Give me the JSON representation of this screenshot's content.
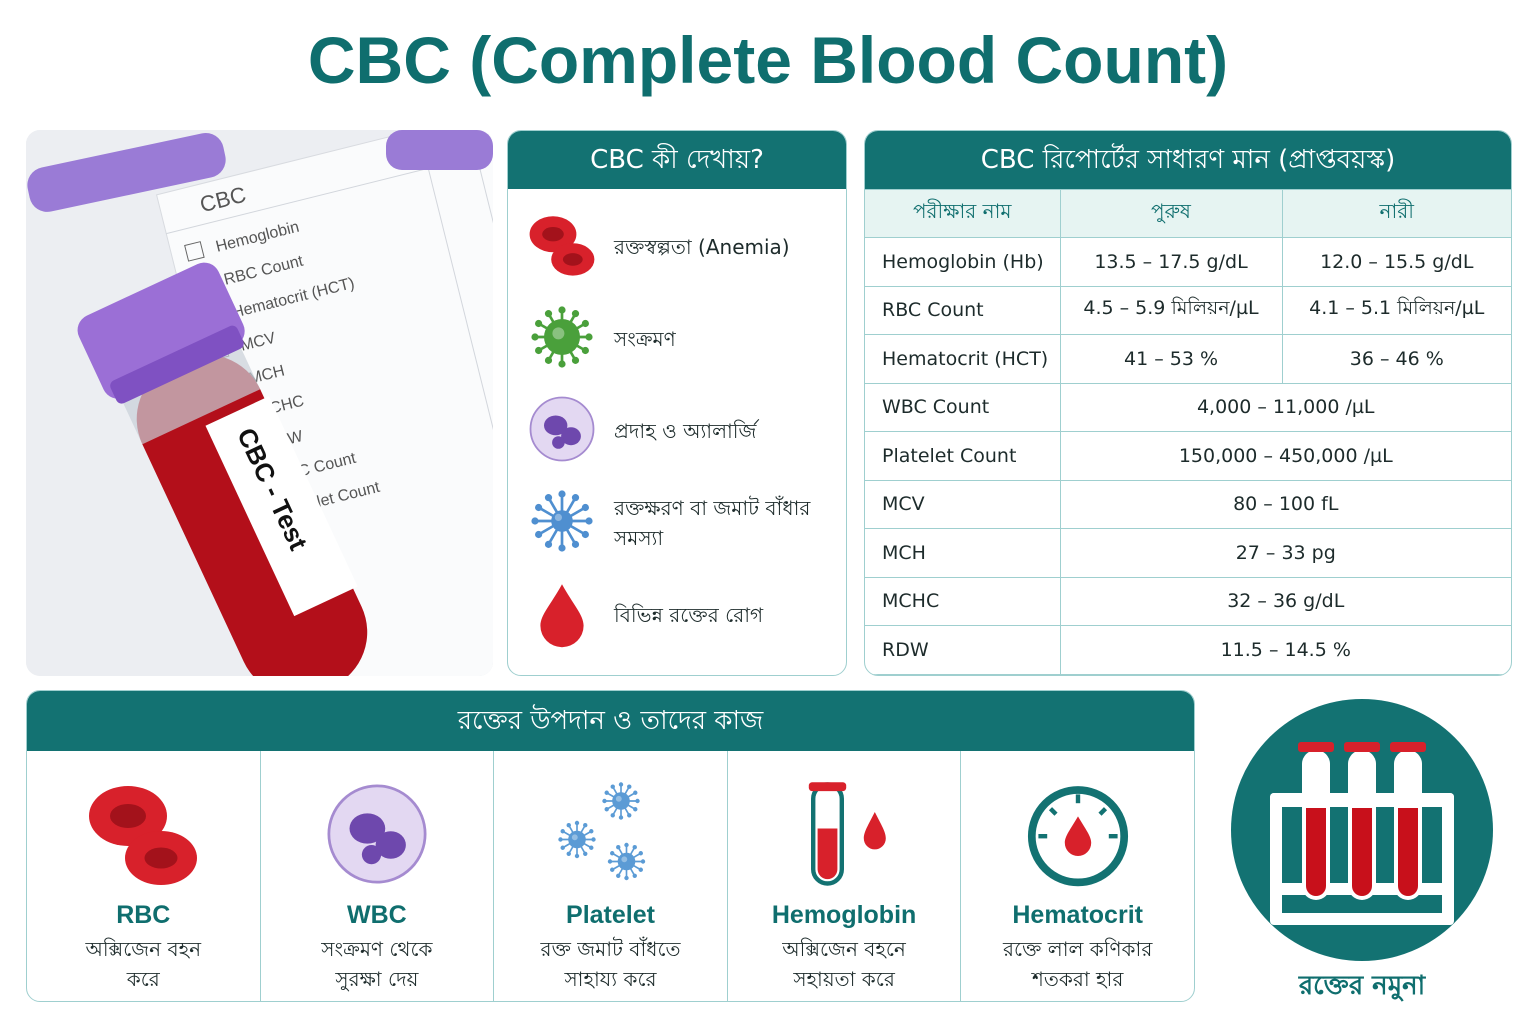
{
  "title": "CBC (Complete Blood Count)",
  "photo": {
    "checklist_title": "CBC",
    "items": [
      "Hemoglobin",
      "RBC Count",
      "Hematocrit (HCT)",
      "MCV",
      "MCH",
      "MCHC",
      "RDW",
      "WBC Count",
      "Platelet Count"
    ],
    "tube_label": "CBC - Test"
  },
  "what_it_shows": {
    "heading": "CBC কী দেখায়?",
    "items": [
      "রক্তস্বল্পতা (Anemia)",
      "সংক্রমণ",
      "প্রদাহ ও অ্যালার্জি",
      "রক্তক্ষরণ বা জমাট বাঁধার সমস্যা",
      "বিভিন্ন রক্তের রোগ"
    ]
  },
  "table": {
    "heading": "CBC রিপোর্টের সাধারণ মান (প্রাপ্তবয়স্ক)",
    "columns": [
      "পরীক্ষার নাম",
      "পুরুষ",
      "নারী"
    ],
    "rows": [
      [
        "Hemoglobin (Hb)",
        "13.5 – 17.5 g/dL",
        "12.0 – 15.5 g/dL"
      ],
      [
        "RBC Count",
        "4.5 – 5.9 মিলিয়ন/µL",
        "4.1 – 5.1 মিলিয়ন/µL"
      ],
      [
        "Hematocrit (HCT)",
        "41 – 53 %",
        "36 – 46 %"
      ],
      [
        "WBC Count",
        "4,000 – 11,000 /µL"
      ],
      [
        "Platelet Count",
        "150,000 – 450,000 /µL"
      ],
      [
        "MCV",
        "80 – 100 fL"
      ],
      [
        "MCH",
        "27 – 33 pg"
      ],
      [
        "MCHC",
        "32 – 36 g/dL"
      ],
      [
        "RDW",
        "11.5 – 14.5 %"
      ]
    ]
  },
  "components": {
    "heading": "রক্তের উপদান ও তাদের কাজ",
    "items": [
      {
        "name": "RBC",
        "description": "অক্সিজেন বহন করে"
      },
      {
        "name": "WBC",
        "description": "সংক্রমণ থেকে সুরক্ষা দেয়"
      },
      {
        "name": "Platelet",
        "description": "রক্ত জমাট বাঁধতে সাহায্য করে"
      },
      {
        "name": "Hemoglobin",
        "description": "অক্সিজেন বহনে সহায়তা করে"
      },
      {
        "name": "Hematocrit",
        "description": "রক্তে লাল কণিকার শতকরা হার"
      }
    ]
  },
  "sample": {
    "label": "রক্তের নমুনা"
  }
}
